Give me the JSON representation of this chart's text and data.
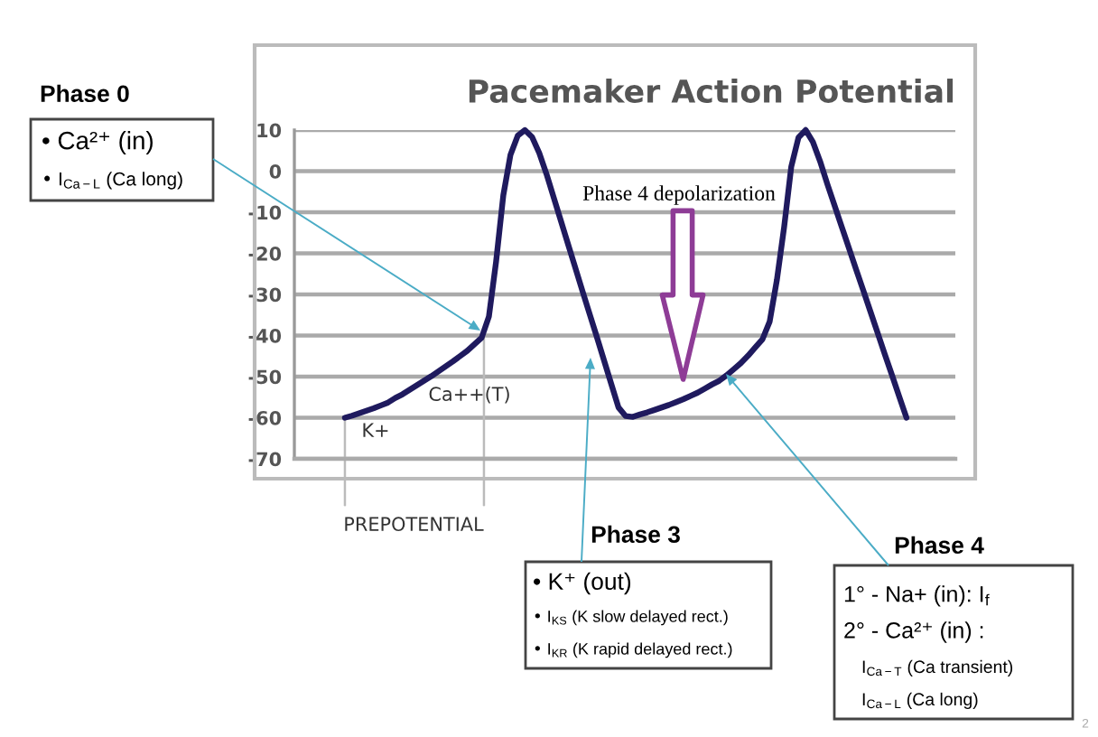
{
  "chart_data": {
    "type": "line",
    "title": "Pacemaker Action Potential",
    "categories": [
      null,
      null,
      null,
      null,
      null,
      null,
      null,
      null,
      null,
      null,
      null,
      null,
      null,
      null,
      null,
      null,
      null,
      null,
      null,
      null,
      null,
      null,
      null,
      null,
      null,
      null,
      null,
      null,
      null,
      null,
      null,
      null,
      null,
      null,
      null,
      null,
      null,
      null,
      null,
      null,
      null,
      null,
      null,
      null,
      null,
      null,
      null,
      null,
      null,
      null,
      null,
      null,
      null,
      null,
      null,
      null,
      null,
      null,
      null,
      null,
      null,
      null,
      null,
      null,
      null,
      null,
      null,
      null,
      null,
      null,
      null,
      null,
      null,
      null,
      null,
      null,
      null,
      null,
      null
    ],
    "series": [
      {
        "color": "#1f1a5e",
        "values": [
          -60,
          -59.5,
          -58.9,
          -58.3,
          -57.7,
          -57.0,
          -56.3,
          -55.2,
          -54.3,
          -53.2,
          -52.1,
          -51.0,
          -49.9,
          -48.7,
          -47.5,
          -46.3,
          -45.0,
          -43.7,
          -42.1,
          -40.5,
          -35.4,
          -22,
          -5.9,
          4,
          8.6,
          10,
          8.3,
          4.4,
          -0.7,
          -6.4,
          -12.1,
          -17.8,
          -23.5,
          -29.2,
          -34.8,
          -40.4,
          -46.1,
          -51.8,
          -57.5,
          -59.6,
          -59.8,
          -59.2,
          -58.7,
          -58.1,
          -57.5,
          -56.9,
          -56.2,
          -55.5,
          -54.7,
          -53.9,
          -52.9,
          -51.9,
          -51.0,
          -49.7,
          -48.2,
          -46.7,
          -44.9,
          -42.9,
          -40.9,
          -36.6,
          -26.5,
          -13.7,
          1.1,
          8.2,
          10,
          7.1,
          2.4,
          -3.1,
          -8.3,
          -13.5,
          -18.7,
          -23.9,
          -29.0,
          -34.2,
          -39.4,
          -44.6,
          -49.7,
          -54.9,
          -60
        ]
      }
    ],
    "ylim": [
      -70,
      10
    ],
    "yticks": [
      10,
      0,
      -10,
      -20,
      -30,
      -40,
      -50,
      -60,
      -70
    ],
    "grid": "y",
    "tick_labels": "y",
    "annotations": [
      "PREPOTENTIAL",
      "K+",
      "Ca++(T)",
      "Phase 4 depolarization",
      "Phase 0",
      "• Ca²⁺ (in)",
      "• I$_{Ca−L}$ (Ca long)",
      "Phase 3",
      "• K⁺ (out)",
      "• I$_{KS}$ (K slow delayed rect.)",
      "• I$_{KR}$ (K rapid delayed rect.)",
      "Phase 4",
      "1° - Na+ (in): I$_{f}$",
      "2° - Ca²⁺ (in) :",
      "I$_{Ca−T}$ (Ca transient)",
      "I$_{Ca−L}$ (Ca long)",
      "2"
    ]
  }
}
